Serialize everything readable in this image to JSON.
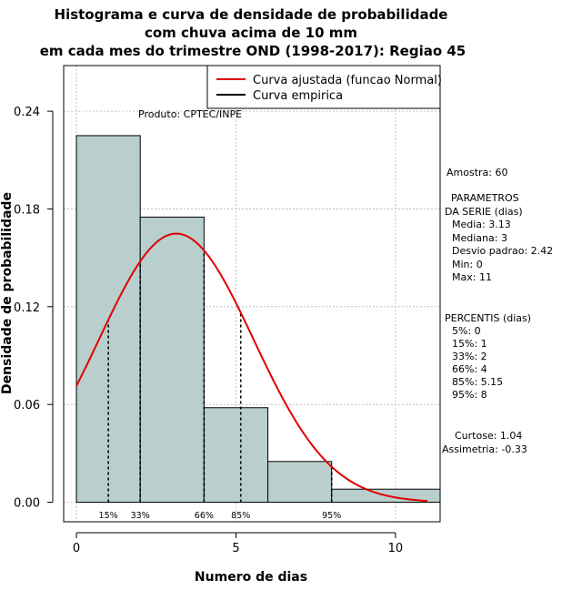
{
  "chart_data": {
    "type": "bar",
    "title_lines": [
      "Histograma e curva de densidade de probabilidade",
      "com chuva acima de 10 mm",
      "em cada mes do trimestre OND (1998-2017): Regiao 45"
    ],
    "xlabel": "Numero de dias",
    "ylabel": "Densidade de probabilidade",
    "xlim": [
      -0.4,
      11.4
    ],
    "ylim": [
      -0.012,
      0.268
    ],
    "x_ticks": [
      0,
      5,
      10
    ],
    "y_ticks": [
      0.0,
      0.06,
      0.12,
      0.18,
      0.24
    ],
    "y_tick_labels": [
      "0.00",
      "0.06",
      "0.12",
      "0.18",
      "0.24"
    ],
    "bins": [
      {
        "start": 0,
        "end": 2,
        "density": 0.225
      },
      {
        "start": 2,
        "end": 4,
        "density": 0.175
      },
      {
        "start": 4,
        "end": 6,
        "density": 0.058
      },
      {
        "start": 6,
        "end": 8,
        "density": 0.025
      },
      {
        "start": 8,
        "end": 11.4,
        "density": 0.008
      }
    ],
    "bar_color": "#b8cfce",
    "curve_color": "#e00000",
    "fitted_curve": {
      "mean": 3.13,
      "sd": 2.42,
      "x_from": 0,
      "x_to": 11
    },
    "percentile_lines": [
      {
        "label": "15%",
        "x": 1
      },
      {
        "label": "33%",
        "x": 2
      },
      {
        "label": "66%",
        "x": 4
      },
      {
        "label": "85%",
        "x": 5.15
      },
      {
        "label": "95%",
        "x": 8
      }
    ],
    "legend": [
      {
        "label": "Curva ajustada (funcao Normal)",
        "color": "#e00000"
      },
      {
        "label": "Curva empirica",
        "color": "#000000"
      }
    ],
    "legend_position": "top-right",
    "grid": true
  },
  "product_label": "Produto: CPTEC/INPE",
  "stats": {
    "sample": "Amostra: 60",
    "params_lines": [
      "PARAMETROS",
      "DA SERIE (dias)",
      "Media: 3.13",
      "Mediana: 3",
      "Desvio padrao: 2.42",
      "Min: 0",
      "Max: 11"
    ],
    "percentis_lines": [
      "PERCENTIS (dias)",
      "5%: 0",
      "15%: 1",
      "33%: 2",
      "66%: 4",
      "85%: 5.15",
      "95%: 8"
    ],
    "curtose": "Curtose: 1.04",
    "assimetria": "Assimetria: -0.33"
  }
}
